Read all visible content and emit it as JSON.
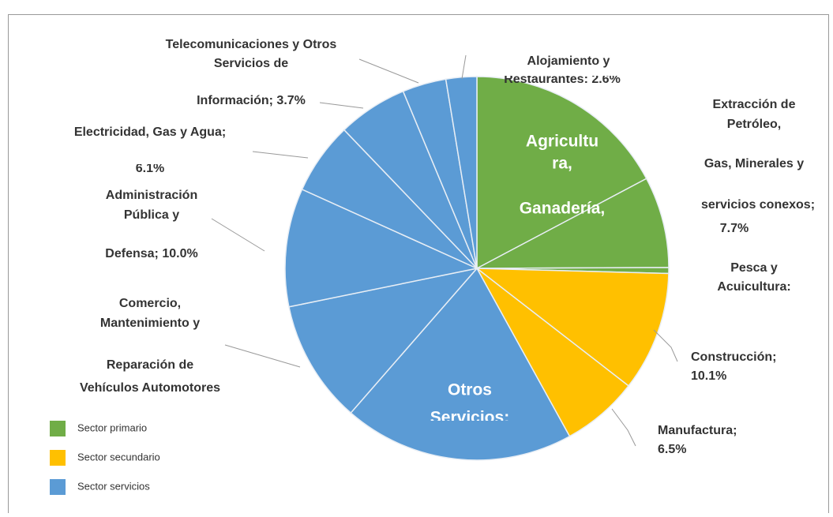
{
  "chart_data": {
    "type": "pie",
    "labels": [
      [
        "Agricultu",
        "ra,",
        "Ganadería,"
      ],
      [
        "Extracción de",
        "Petróleo,",
        "Gas, Minerales y",
        "servicios conexos;",
        "7.7%"
      ],
      [
        "Pesca y",
        "Acuicultura:"
      ],
      [
        "Construcción;",
        "10.1%"
      ],
      [
        "Manufactura;",
        "6.5%"
      ],
      [
        "Otros",
        "Servicios:"
      ],
      [
        "Comercio,",
        "Mantenimiento y",
        "Reparación de",
        "Vehículos Automotores"
      ],
      [
        "Administración",
        "Pública y",
        "Defensa; 10.0%"
      ],
      [
        "Electricidad, Gas y Agua;",
        "6.1%"
      ],
      [],
      [
        "Telecomunicaciones y Otros",
        "Servicios de",
        "Información; 3.7%"
      ],
      [
        "Alojamiento y",
        "Restaurantes: 2.6%"
      ]
    ],
    "values": [
      17.3,
      7.7,
      0.5,
      10.1,
      6.5,
      19.5,
      10.4,
      10.0,
      6.1,
      5.9,
      3.7,
      2.6
    ],
    "sector": [
      0,
      0,
      0,
      1,
      1,
      2,
      2,
      2,
      2,
      2,
      2,
      2
    ],
    "sectors": [
      {
        "name": "Sector primario",
        "color": "#70ad47"
      },
      {
        "name": "Sector secundario",
        "color": "#ffc000"
      },
      {
        "name": "Sector servicios",
        "color": "#5b9bd5"
      }
    ]
  }
}
